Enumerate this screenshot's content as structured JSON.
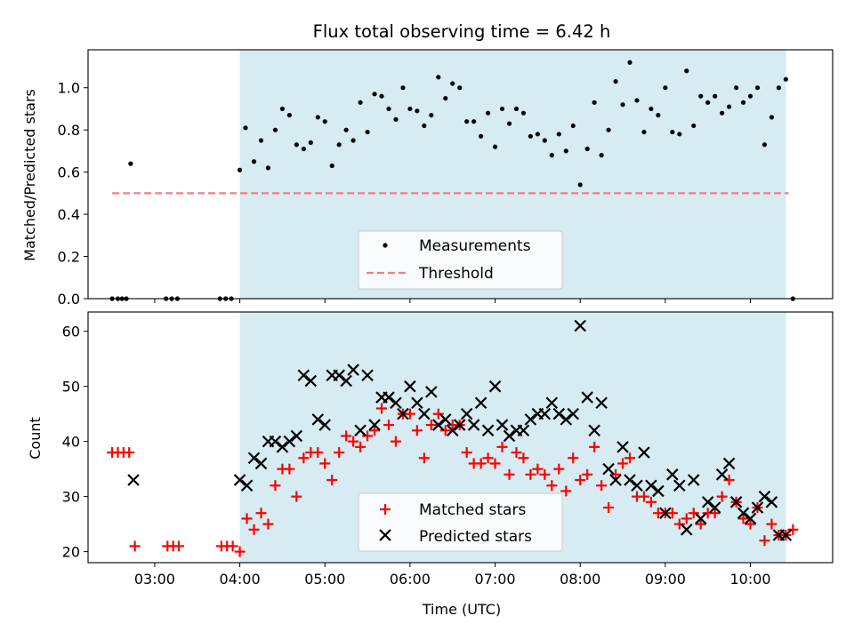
{
  "title": "Flux total observing time = 6.42 h",
  "colors": {
    "shade": "#add8e6",
    "measurement": "#000000",
    "threshold": "#f08080",
    "matched": "#ff0000",
    "predicted": "#000000"
  },
  "chart_data": [
    {
      "type": "scatter",
      "ylabel": "Matched/Predicted stars",
      "ylim": [
        0,
        1.18
      ],
      "yticks": [
        "0.0",
        "0.2",
        "0.4",
        "0.6",
        "0.8",
        "1.0"
      ],
      "xlim": [
        "02:13",
        "10:58"
      ],
      "shaded_span": [
        "04:00",
        "10:25"
      ],
      "grid": false,
      "legend": {
        "placement": "lower center",
        "entries": [
          "Measurements",
          "Threshold"
        ]
      },
      "threshold": {
        "name": "Threshold",
        "value": 0.5,
        "x": [
          "02:30",
          "10:27"
        ]
      },
      "series": [
        {
          "name": "Measurements",
          "points": [
            [
              "02:30",
              0
            ],
            [
              "02:34",
              0
            ],
            [
              "02:37",
              0
            ],
            [
              "02:40",
              0
            ],
            [
              "02:43",
              0.64
            ],
            [
              "03:08",
              0
            ],
            [
              "03:12",
              0
            ],
            [
              "03:16",
              0
            ],
            [
              "03:46",
              0
            ],
            [
              "03:50",
              0
            ],
            [
              "03:54",
              0
            ],
            [
              "04:00",
              0.61
            ],
            [
              "04:04",
              0.81
            ],
            [
              "04:10",
              0.65
            ],
            [
              "04:15",
              0.75
            ],
            [
              "04:20",
              0.62
            ],
            [
              "04:25",
              0.8
            ],
            [
              "04:30",
              0.9
            ],
            [
              "04:35",
              0.87
            ],
            [
              "04:40",
              0.73
            ],
            [
              "04:45",
              0.71
            ],
            [
              "04:50",
              0.74
            ],
            [
              "04:55",
              0.86
            ],
            [
              "05:00",
              0.84
            ],
            [
              "05:05",
              0.63
            ],
            [
              "05:10",
              0.73
            ],
            [
              "05:15",
              0.8
            ],
            [
              "05:20",
              0.75
            ],
            [
              "05:25",
              0.93
            ],
            [
              "05:30",
              0.79
            ],
            [
              "05:35",
              0.97
            ],
            [
              "05:40",
              0.96
            ],
            [
              "05:45",
              0.9
            ],
            [
              "05:50",
              0.85
            ],
            [
              "05:55",
              1.0
            ],
            [
              "06:00",
              0.9
            ],
            [
              "06:05",
              0.89
            ],
            [
              "06:10",
              0.82
            ],
            [
              "06:15",
              0.87
            ],
            [
              "06:20",
              1.05
            ],
            [
              "06:25",
              0.95
            ],
            [
              "06:30",
              1.02
            ],
            [
              "06:35",
              1.0
            ],
            [
              "06:40",
              0.84
            ],
            [
              "06:45",
              0.84
            ],
            [
              "06:50",
              0.77
            ],
            [
              "06:55",
              0.88
            ],
            [
              "07:00",
              0.72
            ],
            [
              "07:05",
              0.9
            ],
            [
              "07:10",
              0.83
            ],
            [
              "07:15",
              0.9
            ],
            [
              "07:20",
              0.88
            ],
            [
              "07:25",
              0.77
            ],
            [
              "07:30",
              0.78
            ],
            [
              "07:35",
              0.75
            ],
            [
              "07:40",
              0.68
            ],
            [
              "07:45",
              0.78
            ],
            [
              "07:50",
              0.7
            ],
            [
              "07:55",
              0.82
            ],
            [
              "08:00",
              0.54
            ],
            [
              "08:05",
              0.71
            ],
            [
              "08:10",
              0.93
            ],
            [
              "08:15",
              0.68
            ],
            [
              "08:20",
              0.8
            ],
            [
              "08:25",
              1.03
            ],
            [
              "08:30",
              0.92
            ],
            [
              "08:35",
              1.12
            ],
            [
              "08:40",
              0.94
            ],
            [
              "08:45",
              0.79
            ],
            [
              "08:50",
              0.9
            ],
            [
              "08:55",
              0.87
            ],
            [
              "09:00",
              1.0
            ],
            [
              "09:05",
              0.79
            ],
            [
              "09:10",
              0.78
            ],
            [
              "09:15",
              1.08
            ],
            [
              "09:20",
              0.82
            ],
            [
              "09:25",
              0.96
            ],
            [
              "09:30",
              0.93
            ],
            [
              "09:35",
              0.96
            ],
            [
              "09:40",
              0.88
            ],
            [
              "09:45",
              0.91
            ],
            [
              "09:50",
              1.0
            ],
            [
              "09:55",
              0.93
            ],
            [
              "10:00",
              0.96
            ],
            [
              "10:05",
              1.0
            ],
            [
              "10:10",
              0.73
            ],
            [
              "10:15",
              0.86
            ],
            [
              "10:20",
              1.0
            ],
            [
              "10:25",
              1.04
            ],
            [
              "10:30",
              0
            ]
          ]
        }
      ]
    },
    {
      "type": "scatter",
      "ylabel": "Count",
      "xlabel": "Time (UTC)",
      "ylim": [
        18,
        63.5
      ],
      "yticks": [
        "20",
        "30",
        "40",
        "50",
        "60"
      ],
      "xlim": [
        "02:13",
        "10:58"
      ],
      "xticks": [
        "03:00",
        "04:00",
        "05:00",
        "06:00",
        "07:00",
        "08:00",
        "09:00",
        "10:00"
      ],
      "shaded_span": [
        "04:00",
        "10:25"
      ],
      "grid": false,
      "legend": {
        "placement": "lower center",
        "entries": [
          "Matched stars",
          "Predicted stars"
        ]
      },
      "series": [
        {
          "name": "Matched stars",
          "points": [
            [
              "02:30",
              38
            ],
            [
              "02:34",
              38
            ],
            [
              "02:38",
              38
            ],
            [
              "02:42",
              38
            ],
            [
              "02:46",
              21
            ],
            [
              "03:09",
              21
            ],
            [
              "03:13",
              21
            ],
            [
              "03:17",
              21
            ],
            [
              "03:47",
              21
            ],
            [
              "03:51",
              21
            ],
            [
              "03:55",
              21
            ],
            [
              "04:00",
              20
            ],
            [
              "04:05",
              26
            ],
            [
              "04:10",
              24
            ],
            [
              "04:15",
              27
            ],
            [
              "04:20",
              25
            ],
            [
              "04:25",
              32
            ],
            [
              "04:30",
              35
            ],
            [
              "04:35",
              35
            ],
            [
              "04:40",
              30
            ],
            [
              "04:45",
              37
            ],
            [
              "04:50",
              38
            ],
            [
              "04:55",
              38
            ],
            [
              "05:00",
              36
            ],
            [
              "05:05",
              33
            ],
            [
              "05:10",
              38
            ],
            [
              "05:15",
              41
            ],
            [
              "05:20",
              40
            ],
            [
              "05:25",
              39
            ],
            [
              "05:30",
              41
            ],
            [
              "05:35",
              42
            ],
            [
              "05:40",
              46
            ],
            [
              "05:45",
              43
            ],
            [
              "05:50",
              40
            ],
            [
              "05:55",
              45
            ],
            [
              "06:00",
              45
            ],
            [
              "06:05",
              42
            ],
            [
              "06:10",
              37
            ],
            [
              "06:15",
              43
            ],
            [
              "06:20",
              45
            ],
            [
              "06:25",
              42
            ],
            [
              "06:30",
              43
            ],
            [
              "06:35",
              43
            ],
            [
              "06:40",
              38
            ],
            [
              "06:45",
              36
            ],
            [
              "06:50",
              36
            ],
            [
              "06:55",
              37
            ],
            [
              "07:00",
              36
            ],
            [
              "07:05",
              39
            ],
            [
              "07:10",
              34
            ],
            [
              "07:15",
              38
            ],
            [
              "07:20",
              37
            ],
            [
              "07:25",
              34
            ],
            [
              "07:30",
              35
            ],
            [
              "07:35",
              34
            ],
            [
              "07:40",
              32
            ],
            [
              "07:45",
              35
            ],
            [
              "07:50",
              31
            ],
            [
              "07:55",
              37
            ],
            [
              "08:00",
              33
            ],
            [
              "08:05",
              34
            ],
            [
              "08:10",
              39
            ],
            [
              "08:15",
              32
            ],
            [
              "08:20",
              28
            ],
            [
              "08:25",
              34
            ],
            [
              "08:30",
              36
            ],
            [
              "08:35",
              37
            ],
            [
              "08:40",
              30
            ],
            [
              "08:45",
              30
            ],
            [
              "08:50",
              29
            ],
            [
              "08:55",
              27
            ],
            [
              "09:00",
              27
            ],
            [
              "09:05",
              27
            ],
            [
              "09:10",
              25
            ],
            [
              "09:15",
              26
            ],
            [
              "09:20",
              27
            ],
            [
              "09:25",
              25
            ],
            [
              "09:30",
              27
            ],
            [
              "09:35",
              27
            ],
            [
              "09:40",
              30
            ],
            [
              "09:45",
              33
            ],
            [
              "09:50",
              29
            ],
            [
              "09:55",
              26
            ],
            [
              "10:00",
              25
            ],
            [
              "10:05",
              28
            ],
            [
              "10:10",
              22
            ],
            [
              "10:15",
              25
            ],
            [
              "10:20",
              23
            ],
            [
              "10:25",
              23
            ],
            [
              "10:30",
              24
            ]
          ]
        },
        {
          "name": "Predicted stars",
          "points": [
            [
              "02:45",
              33
            ],
            [
              "04:00",
              33
            ],
            [
              "04:05",
              32
            ],
            [
              "04:10",
              37
            ],
            [
              "04:15",
              36
            ],
            [
              "04:20",
              40
            ],
            [
              "04:25",
              40
            ],
            [
              "04:30",
              39
            ],
            [
              "04:35",
              40
            ],
            [
              "04:40",
              41
            ],
            [
              "04:45",
              52
            ],
            [
              "04:50",
              51
            ],
            [
              "04:55",
              44
            ],
            [
              "05:00",
              43
            ],
            [
              "05:05",
              52
            ],
            [
              "05:10",
              52
            ],
            [
              "05:15",
              51
            ],
            [
              "05:20",
              53
            ],
            [
              "05:25",
              42
            ],
            [
              "05:30",
              52
            ],
            [
              "05:35",
              43
            ],
            [
              "05:40",
              48
            ],
            [
              "05:45",
              48
            ],
            [
              "05:50",
              47
            ],
            [
              "05:55",
              45
            ],
            [
              "06:00",
              50
            ],
            [
              "06:05",
              47
            ],
            [
              "06:10",
              45
            ],
            [
              "06:15",
              49
            ],
            [
              "06:20",
              43
            ],
            [
              "06:25",
              44
            ],
            [
              "06:30",
              42
            ],
            [
              "06:35",
              43
            ],
            [
              "06:40",
              45
            ],
            [
              "06:45",
              43
            ],
            [
              "06:50",
              47
            ],
            [
              "06:55",
              42
            ],
            [
              "07:00",
              50
            ],
            [
              "07:05",
              43
            ],
            [
              "07:10",
              41
            ],
            [
              "07:15",
              42
            ],
            [
              "07:20",
              42
            ],
            [
              "07:25",
              44
            ],
            [
              "07:30",
              45
            ],
            [
              "07:35",
              45
            ],
            [
              "07:40",
              47
            ],
            [
              "07:45",
              45
            ],
            [
              "07:50",
              44
            ],
            [
              "07:55",
              45
            ],
            [
              "08:00",
              61
            ],
            [
              "08:05",
              48
            ],
            [
              "08:10",
              42
            ],
            [
              "08:15",
              47
            ],
            [
              "08:20",
              35
            ],
            [
              "08:25",
              33
            ],
            [
              "08:30",
              39
            ],
            [
              "08:35",
              33
            ],
            [
              "08:40",
              32
            ],
            [
              "08:45",
              38
            ],
            [
              "08:50",
              32
            ],
            [
              "08:55",
              31
            ],
            [
              "09:00",
              27
            ],
            [
              "09:05",
              34
            ],
            [
              "09:10",
              32
            ],
            [
              "09:15",
              24
            ],
            [
              "09:20",
              33
            ],
            [
              "09:25",
              26
            ],
            [
              "09:30",
              29
            ],
            [
              "09:35",
              28
            ],
            [
              "09:40",
              34
            ],
            [
              "09:45",
              36
            ],
            [
              "09:50",
              29
            ],
            [
              "09:55",
              27
            ],
            [
              "10:00",
              26
            ],
            [
              "10:05",
              28
            ],
            [
              "10:10",
              30
            ],
            [
              "10:15",
              29
            ],
            [
              "10:20",
              23
            ],
            [
              "10:25",
              23
            ]
          ]
        }
      ]
    }
  ]
}
